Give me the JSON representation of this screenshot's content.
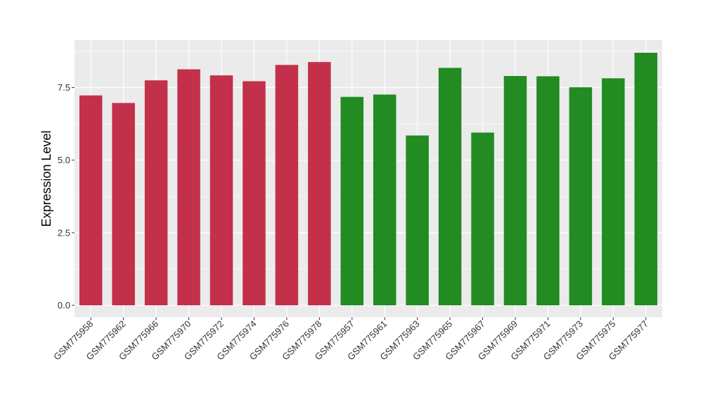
{
  "chart_data": {
    "type": "bar",
    "title": "",
    "xlabel": "",
    "ylabel": "Expression Level",
    "ylim": [
      0,
      9
    ],
    "yticks": [
      0.0,
      2.5,
      5.0,
      7.5
    ],
    "ytick_labels": [
      "0.0",
      "2.5",
      "5.0",
      "7.5"
    ],
    "grid": true,
    "legend": "none",
    "categories": [
      "GSM775958",
      "GSM775962",
      "GSM775966",
      "GSM775970",
      "GSM775972",
      "GSM775974",
      "GSM775976",
      "GSM775978",
      "GSM775957",
      "GSM775961",
      "GSM775963",
      "GSM775965",
      "GSM775967",
      "GSM775969",
      "GSM775971",
      "GSM775973",
      "GSM775975",
      "GSM775977"
    ],
    "values": [
      7.23,
      6.97,
      7.75,
      8.13,
      7.92,
      7.72,
      8.28,
      8.38,
      7.18,
      7.26,
      5.85,
      8.18,
      5.95,
      7.9,
      7.89,
      7.51,
      7.82,
      8.7
    ],
    "bar_colors": [
      "#C3304A",
      "#C3304A",
      "#C3304A",
      "#C3304A",
      "#C3304A",
      "#C3304A",
      "#C3304A",
      "#C3304A",
      "#228B22",
      "#228B22",
      "#228B22",
      "#228B22",
      "#228B22",
      "#228B22",
      "#228B22",
      "#228B22",
      "#228B22",
      "#228B22"
    ],
    "panel_background": "#EBEBEB",
    "grid_color": "#FFFFFF"
  }
}
